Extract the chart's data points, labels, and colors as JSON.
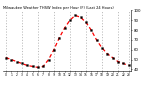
{
  "title": "Milwaukee Weather THSW Index per Hour (F) (Last 24 Hours)",
  "hours": [
    0,
    1,
    2,
    3,
    4,
    5,
    6,
    7,
    8,
    9,
    10,
    11,
    12,
    13,
    14,
    15,
    16,
    17,
    18,
    19,
    20,
    21,
    22,
    23
  ],
  "values": [
    52,
    50,
    48,
    46,
    44,
    43,
    42,
    43,
    50,
    60,
    72,
    82,
    90,
    95,
    93,
    88,
    80,
    70,
    62,
    56,
    52,
    48,
    46,
    44
  ],
  "ylim": [
    38,
    100
  ],
  "yticks": [
    40,
    50,
    60,
    70,
    80,
    90,
    100
  ],
  "ytick_labels": [
    "40",
    "50",
    "60",
    "70",
    "80",
    "90",
    "100"
  ],
  "bg_color": "#ffffff",
  "plot_bg_color": "#ffffff",
  "line_color": "#ff0000",
  "marker_color": "#000000",
  "marker_edge_color": "#000000",
  "grid_color": "#888888",
  "tick_color": "#000000",
  "title_color": "#000000",
  "vgrid_hours": [
    0,
    3,
    6,
    9,
    12,
    15,
    18,
    21,
    23
  ],
  "xtick_hours": [
    0,
    1,
    2,
    3,
    4,
    5,
    6,
    7,
    8,
    9,
    10,
    11,
    12,
    13,
    14,
    15,
    16,
    17,
    18,
    19,
    20,
    21,
    22,
    23
  ]
}
